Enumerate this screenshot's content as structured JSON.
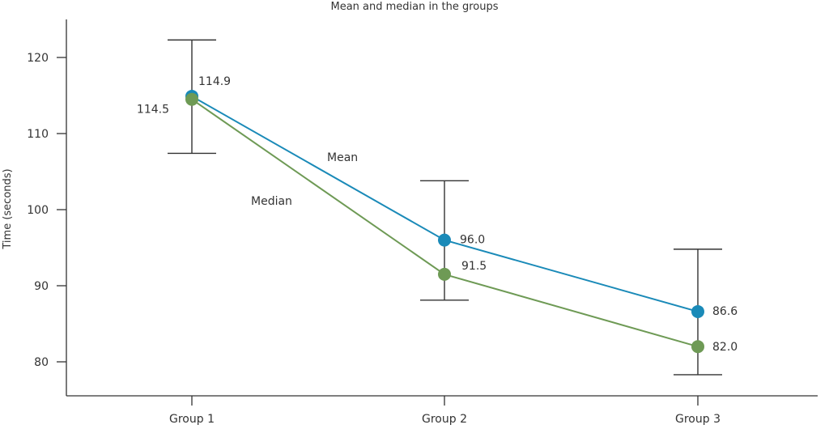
{
  "chart_data": {
    "type": "line",
    "title": "Mean and median in the groups",
    "xlabel": "",
    "ylabel": "Time (seconds)",
    "categories": [
      "Group 1",
      "Group 2",
      "Group 3"
    ],
    "ylim": [
      75.5,
      125.5
    ],
    "yticks": [
      80,
      90,
      100,
      110,
      120
    ],
    "grid": false,
    "series": [
      {
        "name": "Mean",
        "color": "#1a8ab8",
        "values": [
          114.9,
          96.0,
          86.6
        ],
        "labels": [
          "114.9",
          "96.0",
          "86.6"
        ]
      },
      {
        "name": "Median",
        "color": "#6e9a55",
        "values": [
          114.5,
          91.5,
          82.0
        ],
        "labels": [
          "114.5",
          "91.5",
          "82.0"
        ]
      }
    ],
    "error_bars": [
      {
        "low": 107.4,
        "high": 122.3
      },
      {
        "low": 88.1,
        "high": 103.8
      },
      {
        "low": 78.3,
        "high": 94.8
      }
    ]
  }
}
